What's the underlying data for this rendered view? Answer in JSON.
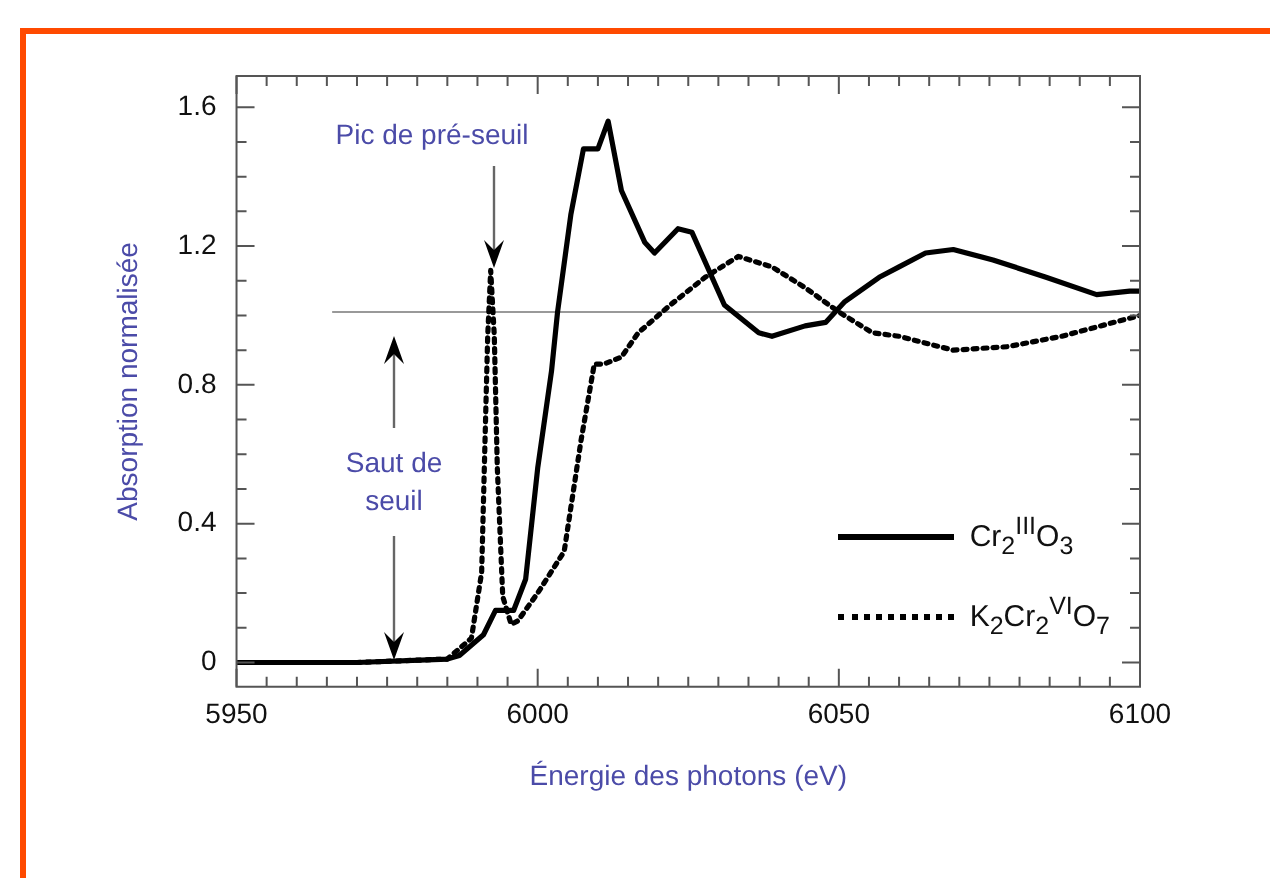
{
  "chart_data": {
    "type": "line",
    "xlabel": "Énergie des photons (eV)",
    "ylabel": "Absorption normalisée",
    "xlim": [
      5950,
      6100
    ],
    "ylim": [
      -0.07,
      1.69
    ],
    "xticks": [
      5950,
      {
        "value": 5955,
        "label": null
      },
      {
        "value": 5960,
        "label": null
      },
      {
        "value": 5965,
        "label": null
      },
      {
        "value": 5970,
        "label": null
      },
      {
        "value": 5975,
        "label": null
      },
      {
        "value": 5980,
        "label": null
      },
      {
        "value": 5985,
        "label": null
      },
      {
        "value": 5990,
        "label": null
      },
      {
        "value": 5995,
        "label": null
      },
      6000,
      {
        "value": 6005,
        "label": null
      },
      {
        "value": 6010,
        "label": null
      },
      {
        "value": 6015,
        "label": null
      },
      {
        "value": 6020,
        "label": null
      },
      {
        "value": 6025,
        "label": null
      },
      {
        "value": 6030,
        "label": null
      },
      {
        "value": 6035,
        "label": null
      },
      {
        "value": 6040,
        "label": null
      },
      {
        "value": 6045,
        "label": null
      },
      6050,
      {
        "value": 6055,
        "label": null
      },
      {
        "value": 6060,
        "label": null
      },
      {
        "value": 6065,
        "label": null
      },
      {
        "value": 6070,
        "label": null
      },
      {
        "value": 6075,
        "label": null
      },
      {
        "value": 6080,
        "label": null
      },
      {
        "value": 6085,
        "label": null
      },
      {
        "value": 6090,
        "label": null
      },
      {
        "value": 6095,
        "label": null
      },
      6100
    ],
    "yticks": [
      0,
      {
        "value": 0.1,
        "label": null
      },
      {
        "value": 0.2,
        "label": null
      },
      {
        "value": 0.3,
        "label": null
      },
      0.4,
      {
        "value": 0.5,
        "label": null
      },
      {
        "value": 0.6,
        "label": null
      },
      {
        "value": 0.7,
        "label": null
      },
      0.8,
      {
        "value": 0.9,
        "label": null
      },
      {
        "value": 1.0,
        "label": null
      },
      {
        "value": 1.1,
        "label": null
      },
      1.2,
      {
        "value": 1.3,
        "label": null
      },
      {
        "value": 1.4,
        "label": null
      },
      {
        "value": 1.5,
        "label": null
      },
      1.6
    ],
    "grid": false,
    "legend": "bottom right",
    "marker": "none",
    "series": [
      {
        "name": "Cr$_{2}$$^{III}$O$_{3}$",
        "color": "#000000",
        "line_style": "solid",
        "x": [
          5950,
          5970,
          5985,
          5987,
          5991,
          5993,
          5996,
          5998,
          6000,
          6002.3,
          6003.3,
          6005.5,
          6007.6,
          6010,
          6011.7,
          6013.9,
          6017.8,
          6019.4,
          6023.3,
          6025.6,
          6031,
          6036.7,
          6038.9,
          6044.4,
          6047.8,
          6051,
          6056.7,
          6060,
          6064.4,
          6069,
          6075.6,
          6084.4,
          6092.8,
          6098.3,
          6100
        ],
        "values": [
          0,
          0,
          0.01,
          0.02,
          0.08,
          0.15,
          0.15,
          0.24,
          0.56,
          0.84,
          1.01,
          1.29,
          1.48,
          1.48,
          1.56,
          1.36,
          1.21,
          1.18,
          1.25,
          1.24,
          1.03,
          0.95,
          0.94,
          0.97,
          0.98,
          1.04,
          1.11,
          1.14,
          1.18,
          1.19,
          1.16,
          1.11,
          1.06,
          1.07,
          1.07
        ]
      },
      {
        "name": "K$_{2}$Cr$_{2}$$^{VI}$O$_{7}$",
        "color": "#000000",
        "line_style": "dotted",
        "x": [
          5950,
          5970,
          5985,
          5989,
          5990.7,
          5991.7,
          5992.2,
          5992.8,
          5993.3,
          5994.2,
          5995.6,
          5996.7,
          6000,
          6004.4,
          6007.2,
          6009.4,
          6011,
          6013.9,
          6016.7,
          6022,
          6027.8,
          6033.3,
          6038.9,
          6044.4,
          6050,
          6055.6,
          6060,
          6069,
          6078,
          6087,
          6097.8,
          6100
        ],
        "values": [
          0,
          0,
          0.01,
          0.07,
          0.26,
          0.94,
          1.13,
          0.94,
          0.56,
          0.19,
          0.11,
          0.12,
          0.2,
          0.32,
          0.64,
          0.86,
          0.86,
          0.88,
          0.95,
          1.03,
          1.11,
          1.17,
          1.14,
          1.08,
          1.01,
          0.95,
          0.94,
          0.9,
          0.91,
          0.94,
          0.99,
          1.0
        ]
      },
      {
        "color": "#999999",
        "line_style": "solid",
        "x": [
          5966,
          6100
        ],
        "values": [
          1.01,
          1.01
        ]
      }
    ],
    "annotations": [
      "Pic de pré-seuil",
      "Saut de seuil"
    ]
  }
}
